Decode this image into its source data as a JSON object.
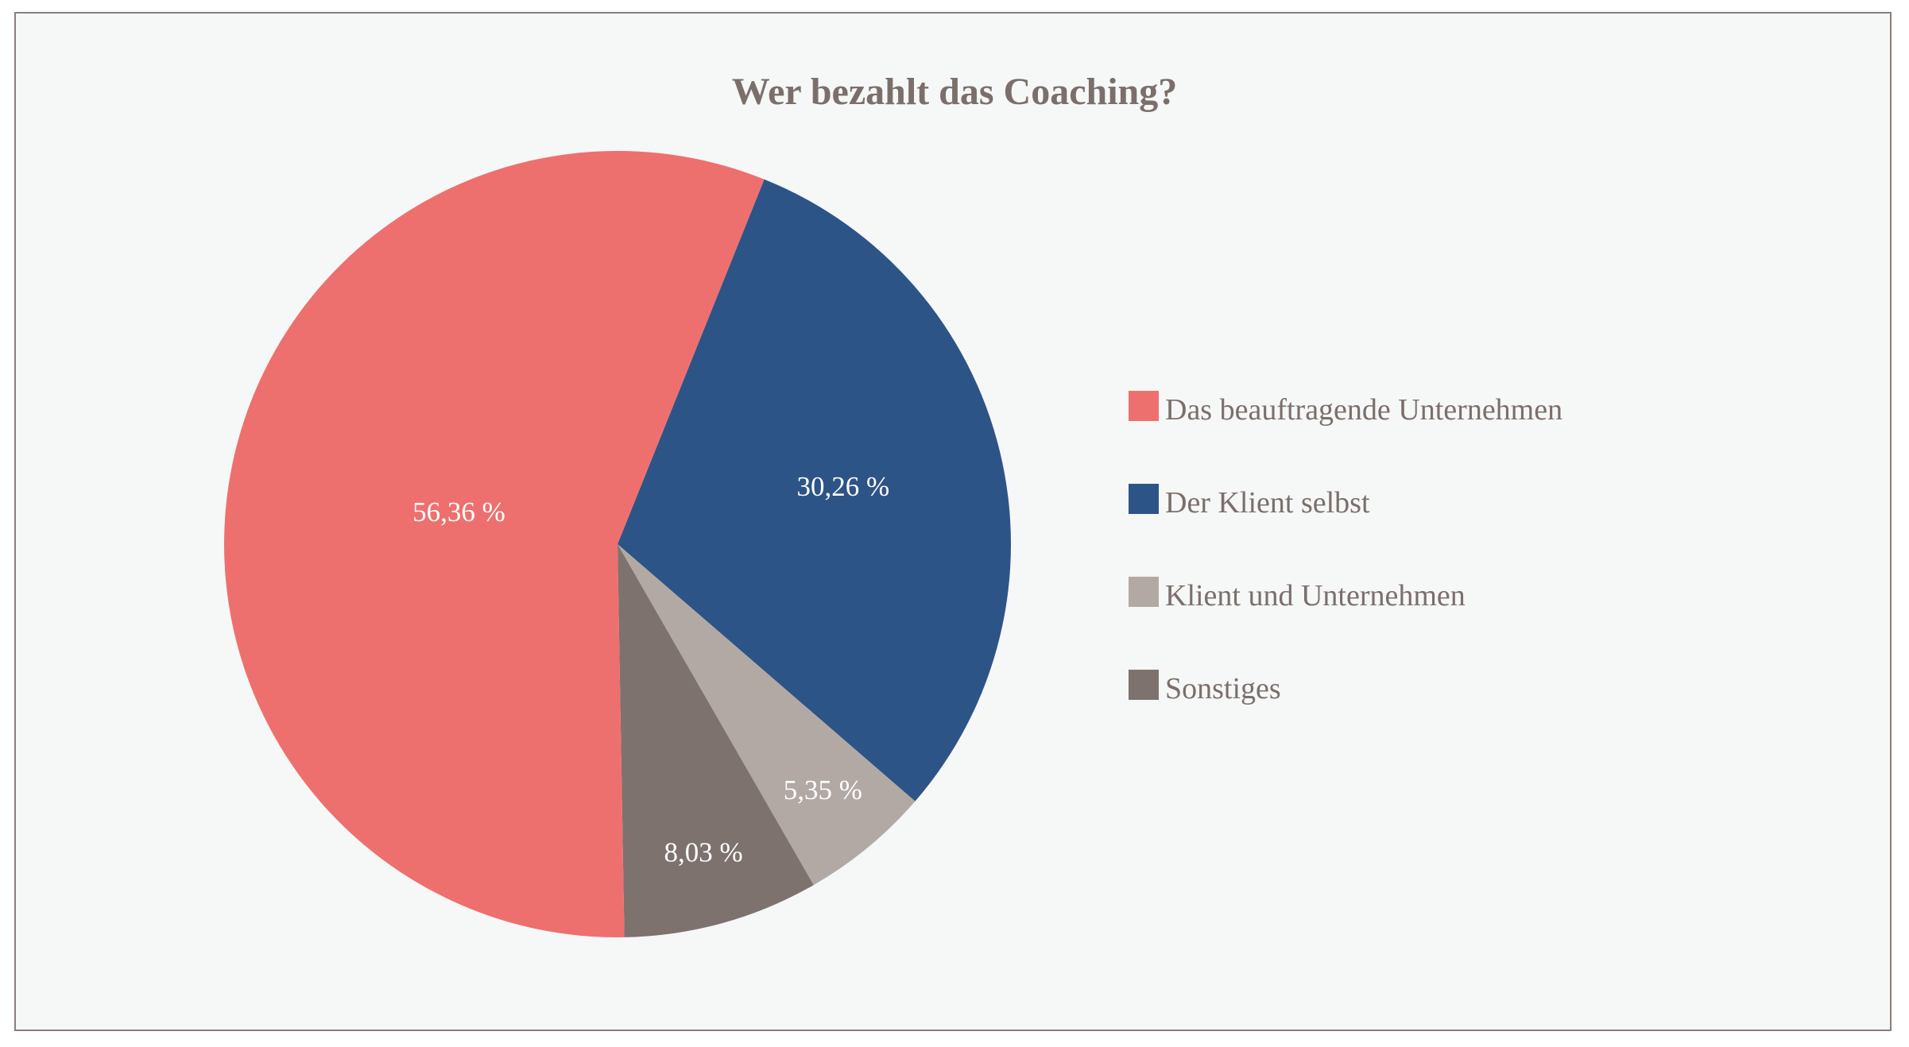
{
  "chart_data": {
    "type": "pie",
    "title": "Wer bezahlt das Coaching?",
    "categories": [
      "Das beauftragende Unternehmen",
      "Der Klient selbst",
      "Klient und Unternehmen",
      "Sonstiges"
    ],
    "values": [
      56.36,
      30.26,
      5.35,
      8.03
    ],
    "data_labels": [
      "56,36 %",
      "30,26 %",
      "5,35 %",
      "8,03 %"
    ],
    "colors": [
      "#ee706e",
      "#2d5487",
      "#b2a9a5",
      "#7d726e"
    ],
    "legend_position": "right"
  }
}
